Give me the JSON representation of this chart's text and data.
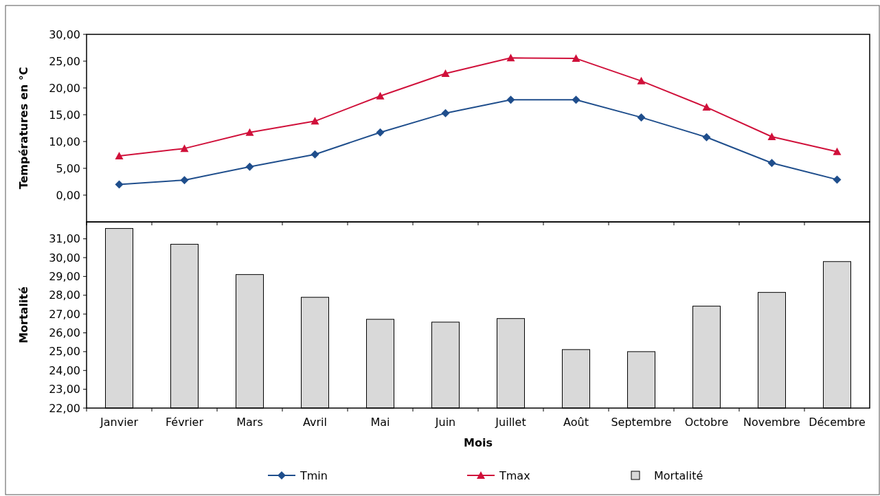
{
  "chart_data": [
    {
      "type": "line",
      "ylabel": "Températures en °C",
      "categories": [
        null,
        null,
        null,
        null,
        null,
        null,
        null,
        null,
        null,
        null,
        null,
        null
      ],
      "ylim": [
        -5,
        30
      ],
      "yticks": [
        {
          "value": 0,
          "label": "0,00"
        },
        {
          "value": 5,
          "label": "5,00"
        },
        {
          "value": 10,
          "label": "10,00"
        },
        {
          "value": 15,
          "label": "15,00"
        },
        {
          "value": 20,
          "label": "20,00"
        },
        {
          "value": 25,
          "label": "25,00"
        },
        {
          "value": 30,
          "label": "30,00"
        }
      ],
      "grid": false,
      "legend": "bottom",
      "line_style": "solid",
      "series": [
        {
          "name": "Tmin",
          "color": "#1f4e8c",
          "marker": "diamond",
          "values": [
            2.0,
            2.8,
            5.3,
            7.6,
            11.7,
            15.3,
            17.8,
            17.8,
            14.5,
            10.8,
            6.0,
            2.9
          ]
        },
        {
          "name": "Tmax",
          "color": "#d0103a",
          "marker": "triangle",
          "values": [
            7.3,
            8.7,
            11.7,
            13.8,
            18.5,
            22.7,
            25.6,
            25.5,
            21.3,
            16.4,
            10.9,
            8.1
          ]
        }
      ]
    },
    {
      "type": "bar",
      "xlabel": "Mois",
      "ylabel": "Mortalité",
      "categories": [
        "Janvier",
        "Février",
        "Mars",
        "Avril",
        "Mai",
        "Juin",
        "Juillet",
        "Août",
        "Septembre",
        "Octobre",
        "Novembre",
        "Décembre"
      ],
      "ylim": [
        22,
        31.9
      ],
      "yticks": [
        {
          "value": 22,
          "label": "22,00"
        },
        {
          "value": 23,
          "label": "23,00"
        },
        {
          "value": 24,
          "label": "24,00"
        },
        {
          "value": 25,
          "label": "25,00"
        },
        {
          "value": 26,
          "label": "26,00"
        },
        {
          "value": 27,
          "label": "27,00"
        },
        {
          "value": 28,
          "label": "28,00"
        },
        {
          "value": 29,
          "label": "29,00"
        },
        {
          "value": 30,
          "label": "30,00"
        },
        {
          "value": 31,
          "label": "31,00"
        }
      ],
      "grid": false,
      "legend": "bottom",
      "series": [
        {
          "name": "Mortalité",
          "color": "#d9d9d9",
          "values": [
            31.55,
            30.71,
            29.1,
            27.89,
            26.72,
            26.57,
            26.76,
            25.11,
            25.0,
            27.42,
            28.15,
            29.79
          ]
        }
      ]
    }
  ]
}
